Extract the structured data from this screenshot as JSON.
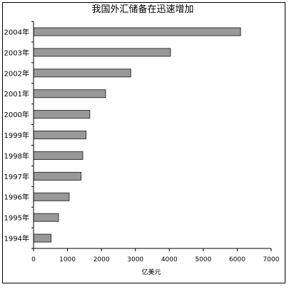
{
  "chart_data": {
    "type": "bar",
    "orientation": "horizontal",
    "title": "我国外汇储备在迅速增加",
    "xlabel": "亿美元",
    "ylabel": "",
    "categories": [
      "1994年",
      "1995年",
      "1996年",
      "1997年",
      "1998年",
      "1999年",
      "2000年",
      "2001年",
      "2002年",
      "2003年",
      "2004年"
    ],
    "values": [
      516,
      736,
      1050,
      1399,
      1450,
      1547,
      1656,
      2122,
      2864,
      4033,
      6099
    ],
    "xlim": [
      0,
      7000
    ],
    "xticks": [
      0,
      1000,
      2000,
      3000,
      4000,
      5000,
      6000,
      7000
    ],
    "grid": false,
    "legend": "none",
    "bar_color": "#999999",
    "bar_edge_color": "#333333"
  }
}
